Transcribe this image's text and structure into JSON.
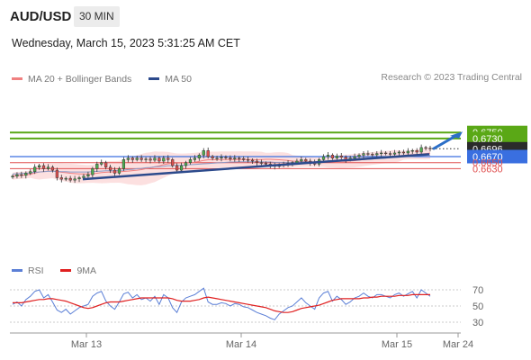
{
  "header": {
    "symbol": "AUD/USD",
    "timeframe": "30 MIN",
    "datetime": "Wednesday, March 15, 2023 5:31:25 AM CET",
    "credit": "Research © 2023 Trading Central"
  },
  "legend": {
    "ma20": {
      "label": "MA 20 + Bollinger Bands",
      "color": "#f08080"
    },
    "ma50": {
      "label": "MA 50",
      "color": "#2c4a8c"
    }
  },
  "rsi_legend": {
    "rsi": {
      "label": "RSI",
      "color": "#5b7fd6"
    },
    "ma9": {
      "label": "9MA",
      "color": "#e02020"
    }
  },
  "chart_data": [
    {
      "type": "candlestick",
      "title": "AUD/USD 30 MIN",
      "x_ticks": [
        "Mar 13",
        "Mar 14",
        "Mar 15",
        "Mar 24"
      ],
      "levels": [
        {
          "value": 0.675,
          "label": "0.6750",
          "style": "resistance",
          "color": "#5aa816"
        },
        {
          "value": 0.673,
          "label": "0.6730",
          "style": "resistance",
          "color": "#5aa816"
        },
        {
          "value": 0.6696,
          "label": "0.6696",
          "style": "last-price",
          "color": "#2b2b2b"
        },
        {
          "value": 0.667,
          "label": "0.6670",
          "style": "pivot",
          "color": "#3a6fe0"
        },
        {
          "value": 0.665,
          "label": "0.6650",
          "style": "support",
          "color": "#e05050"
        },
        {
          "value": 0.663,
          "label": "0.6630",
          "style": "support",
          "color": "#e05050"
        }
      ],
      "close": [
        0.6605,
        0.661,
        0.6608,
        0.6615,
        0.662,
        0.6635,
        0.664,
        0.663,
        0.6635,
        0.6625,
        0.66,
        0.6595,
        0.6598,
        0.6592,
        0.6596,
        0.66,
        0.6605,
        0.661,
        0.663,
        0.6645,
        0.665,
        0.6635,
        0.6625,
        0.6615,
        0.663,
        0.666,
        0.6665,
        0.666,
        0.6665,
        0.666,
        0.6662,
        0.6658,
        0.6665,
        0.6655,
        0.6665,
        0.666,
        0.664,
        0.6625,
        0.664,
        0.665,
        0.666,
        0.6665,
        0.6675,
        0.669,
        0.667,
        0.6665,
        0.6665,
        0.6668,
        0.6666,
        0.6662,
        0.6665,
        0.6663,
        0.666,
        0.6658,
        0.6655,
        0.665,
        0.6648,
        0.6645,
        0.664,
        0.6638,
        0.6642,
        0.6645,
        0.6648,
        0.665,
        0.6655,
        0.666,
        0.6655,
        0.665,
        0.6645,
        0.666,
        0.667,
        0.6675,
        0.6665,
        0.6672,
        0.6668,
        0.666,
        0.6665,
        0.667,
        0.6675,
        0.668,
        0.6678,
        0.6676,
        0.668,
        0.6682,
        0.668,
        0.6678,
        0.6682,
        0.6685,
        0.6682,
        0.6688,
        0.669,
        0.6685,
        0.67,
        0.6698,
        0.6696
      ],
      "ma50": [
        0.6612,
        0.6613,
        0.6614,
        0.6615,
        0.6616,
        0.6618,
        0.6619,
        0.662,
        0.6621,
        0.6621,
        0.6621,
        0.662,
        0.662,
        0.6619,
        0.6619,
        0.6619,
        0.6619,
        0.6619,
        0.662,
        0.6621,
        0.6622,
        0.6623,
        0.6623,
        0.6623,
        0.6624,
        0.6625,
        0.6627,
        0.6628,
        0.663,
        0.6631,
        0.6633,
        0.6634,
        0.6636,
        0.6637,
        0.6638,
        0.664,
        0.664,
        0.6641,
        0.6641,
        0.6642,
        0.6643,
        0.6644,
        0.6645,
        0.6646,
        0.6647,
        0.6648,
        0.6649,
        0.665,
        0.6651,
        0.6652,
        0.6652,
        0.6653,
        0.6653,
        0.6653,
        0.6653,
        0.6653,
        0.6653,
        0.6652,
        0.6652,
        0.6651,
        0.6651,
        0.6651,
        0.6651,
        0.6651,
        0.6651,
        0.6652,
        0.6652,
        0.6652,
        0.6652,
        0.6653,
        0.6654,
        0.6655,
        0.6655,
        0.6656,
        0.6656,
        0.6657,
        0.6657,
        0.6658,
        0.6659,
        0.666,
        0.6661,
        0.6662,
        0.6663,
        0.6664,
        0.6665,
        0.6666,
        0.6667,
        0.6668,
        0.6669,
        0.667,
        0.6671,
        0.6672,
        0.6673,
        0.6674,
        0.6675
      ],
      "y_range": [
        0.658,
        0.6775
      ]
    },
    {
      "type": "line",
      "title": "RSI",
      "y_ticks": [
        70,
        50,
        30
      ],
      "ylim": [
        25,
        75
      ],
      "series": [
        {
          "name": "RSI",
          "color": "#5b7fd6",
          "values": [
            52,
            55,
            50,
            58,
            62,
            68,
            70,
            60,
            64,
            55,
            45,
            42,
            46,
            40,
            44,
            48,
            50,
            52,
            62,
            66,
            68,
            56,
            50,
            46,
            55,
            65,
            67,
            60,
            64,
            58,
            60,
            56,
            62,
            52,
            64,
            60,
            48,
            42,
            55,
            60,
            62,
            64,
            68,
            72,
            55,
            52,
            52,
            54,
            53,
            50,
            53,
            52,
            49,
            48,
            45,
            42,
            40,
            38,
            35,
            33,
            40,
            44,
            48,
            50,
            55,
            60,
            54,
            50,
            46,
            60,
            66,
            68,
            56,
            62,
            58,
            52,
            55,
            60,
            62,
            66,
            62,
            60,
            64,
            64,
            62,
            60,
            64,
            66,
            62,
            65,
            68,
            60,
            70,
            66,
            62
          ]
        },
        {
          "name": "9MA",
          "color": "#e02020",
          "values": [
            54,
            54,
            54,
            55,
            56,
            57,
            58,
            58,
            59,
            59,
            58,
            57,
            56,
            54,
            52,
            50,
            48,
            47,
            48,
            50,
            52,
            54,
            55,
            55,
            55,
            56,
            57,
            58,
            59,
            60,
            60,
            60,
            60,
            60,
            60,
            60,
            59,
            57,
            56,
            56,
            56,
            57,
            58,
            60,
            61,
            60,
            59,
            58,
            57,
            56,
            55,
            54,
            53,
            52,
            51,
            50,
            49,
            48,
            46,
            44,
            43,
            42,
            42,
            43,
            45,
            47,
            48,
            49,
            50,
            51,
            53,
            55,
            57,
            58,
            59,
            59,
            59,
            59,
            59,
            60,
            60,
            61,
            61,
            62,
            62,
            62,
            62,
            63,
            63,
            63,
            64,
            64,
            64,
            64,
            64
          ]
        }
      ]
    }
  ]
}
